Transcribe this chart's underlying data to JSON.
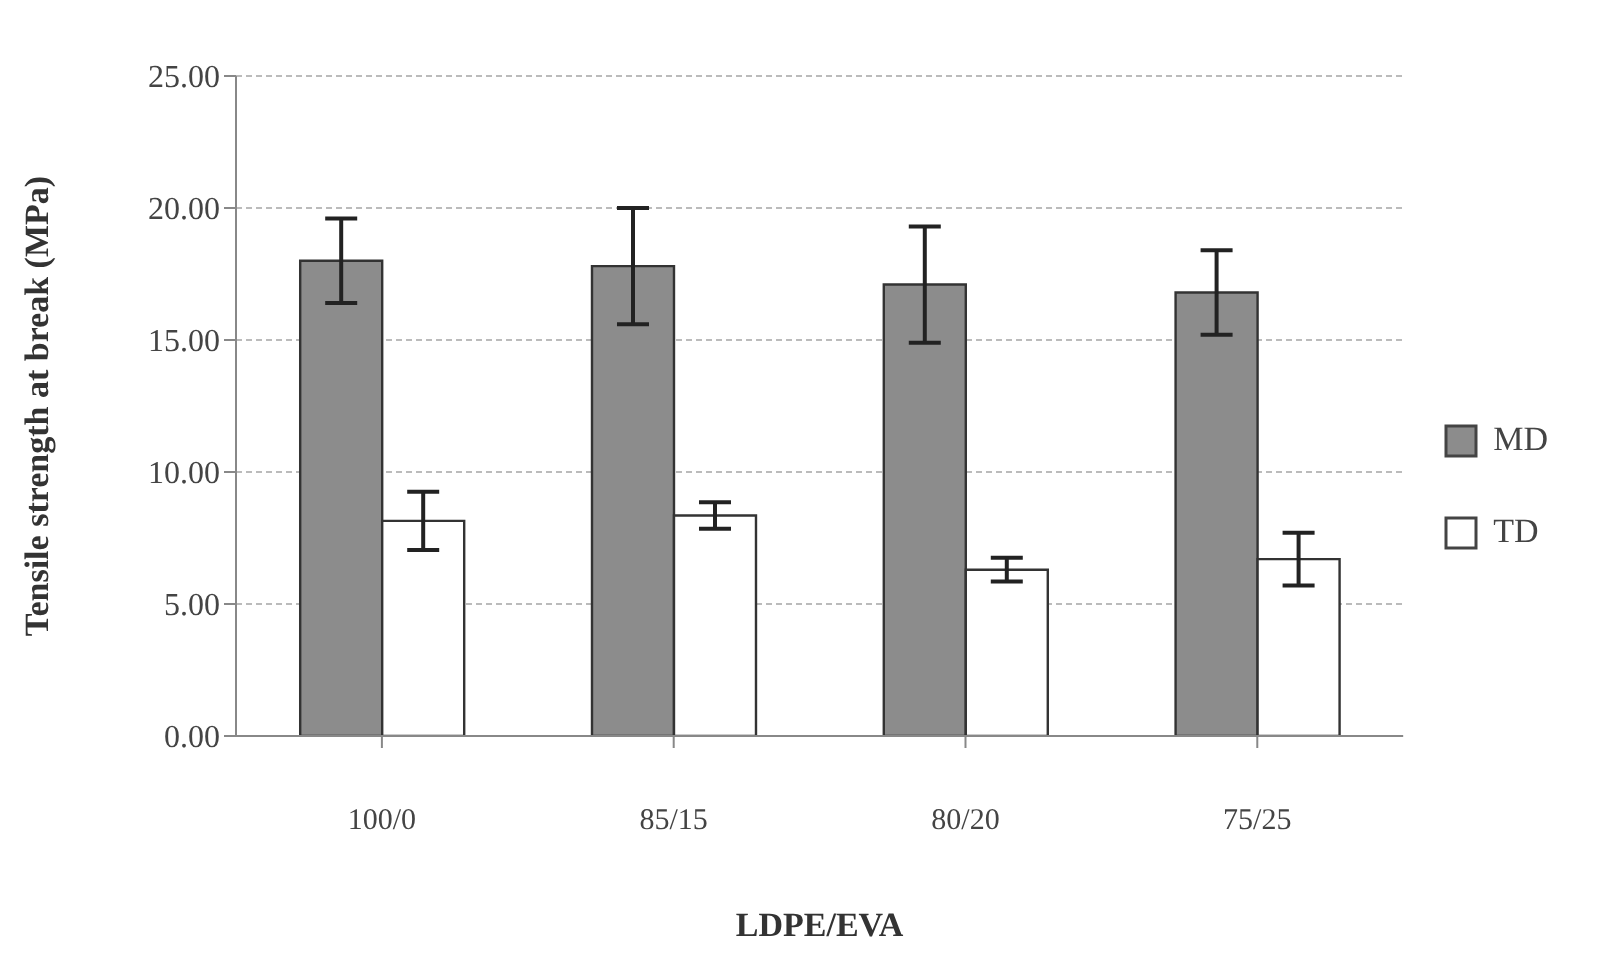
{
  "chart_data": {
    "type": "bar",
    "xlabel": "LDPE/EVA",
    "ylabel": "Tensile strength at break (MPa)",
    "categories": [
      "100/0",
      "85/15",
      "80/20",
      "75/25"
    ],
    "series": [
      {
        "name": "MD",
        "color": "#8c8c8c",
        "values": [
          18.0,
          17.8,
          17.1,
          16.8
        ],
        "errors": [
          1.6,
          2.2,
          2.2,
          1.6
        ]
      },
      {
        "name": "TD",
        "color": "#ffffff",
        "values": [
          8.15,
          8.35,
          6.3,
          6.7
        ],
        "errors": [
          1.1,
          0.5,
          0.45,
          1.0
        ]
      }
    ],
    "ylim": [
      0,
      25
    ],
    "yticks": [
      {
        "value": 0,
        "label": "0.00"
      },
      {
        "value": 5,
        "label": "5.00"
      },
      {
        "value": 10,
        "label": "10.00"
      },
      {
        "value": 15,
        "label": "15.00"
      },
      {
        "value": 20,
        "label": "20.00"
      },
      {
        "value": 25,
        "label": "25.00"
      }
    ],
    "grid": "y",
    "legend": "right"
  }
}
